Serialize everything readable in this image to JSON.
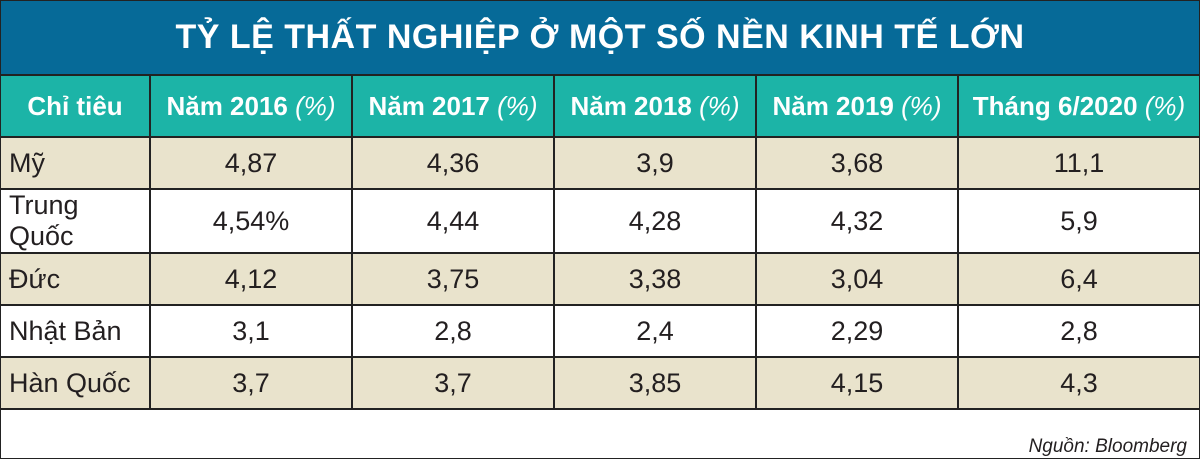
{
  "chart_data": {
    "type": "table",
    "title": "TỶ LỆ THẤT NGHIỆP Ở MỘT SỐ NỀN KINH TẾ LỚN",
    "columns": [
      {
        "label": "Chỉ tiêu",
        "unit": ""
      },
      {
        "label": "Năm 2016",
        "unit": "(%)"
      },
      {
        "label": "Năm 2017",
        "unit": "(%)"
      },
      {
        "label": "Năm 2018",
        "unit": "(%)"
      },
      {
        "label": "Năm 2019",
        "unit": "(%)"
      },
      {
        "label": "Tháng 6/2020",
        "unit": "(%)"
      }
    ],
    "rows": [
      {
        "name": "Mỹ",
        "values": [
          "4,87",
          "4,36",
          "3,9",
          "3,68",
          "11,1"
        ]
      },
      {
        "name": "Trung Quốc",
        "values": [
          "4,54%",
          "4,44",
          "4,28",
          "4,32",
          "5,9"
        ]
      },
      {
        "name": "Đức",
        "values": [
          "4,12",
          "3,75",
          "3,38",
          "3,04",
          "6,4"
        ]
      },
      {
        "name": "Nhật Bản",
        "values": [
          "3,1",
          "2,8",
          "2,4",
          "2,29",
          "2,8"
        ]
      },
      {
        "name": "Hàn Quốc",
        "values": [
          "3,7",
          "3,7",
          "3,85",
          "4,15",
          "4,3"
        ]
      }
    ],
    "source": "Nguồn: Bloomberg"
  },
  "colors": {
    "title_bg": "#066a98",
    "header_bg": "#1cb4a7",
    "band_bg": "#e9e3cc"
  }
}
